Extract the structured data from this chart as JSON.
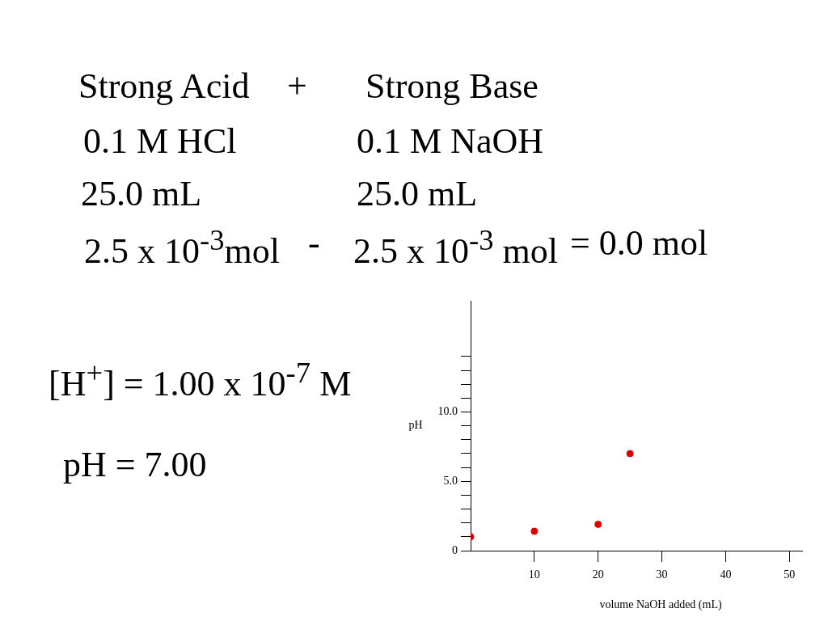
{
  "chart_data": {
    "type": "scatter",
    "xlabel": "volume NaOH added (mL)",
    "ylabel": "pH",
    "annotations": [
      "Strong Acid",
      "+",
      "Strong Base",
      "0.1 M HCl",
      "0.1 M NaOH",
      "25.0 mL",
      "25.0 mL",
      "2.5 x 10$^{-3}$mol",
      "-",
      "2.5 x 10$^{-3}$ mol",
      "= 0.0 mol",
      "[H$^{+}$] = 1.00 x 10$^{-7}$ M",
      "pH = 7.00"
    ],
    "series": [
      {
        "color": "#e00000",
        "x": [
          0,
          10,
          20,
          25
        ],
        "values": [
          1.0,
          1.4,
          1.9,
          7.0
        ]
      }
    ],
    "marker": "circle",
    "xlim": [
      0,
      52
    ],
    "xticks": [
      10,
      20,
      30,
      40,
      50
    ],
    "ylim": [
      0,
      18
    ],
    "yticks": [
      {
        "value": 0,
        "label": "0"
      },
      {
        "value": 1,
        "label": null
      },
      {
        "value": 2,
        "label": null
      },
      {
        "value": 3,
        "label": null
      },
      {
        "value": 4,
        "label": null
      },
      {
        "value": 5,
        "label": "5.0"
      },
      {
        "value": 6,
        "label": null
      },
      {
        "value": 7,
        "label": null
      },
      {
        "value": 8,
        "label": null
      },
      {
        "value": 9,
        "label": null
      },
      {
        "value": 10,
        "label": "10.0"
      },
      {
        "value": 11,
        "label": null
      },
      {
        "value": 12,
        "label": null
      },
      {
        "value": 13,
        "label": null
      },
      {
        "value": 14,
        "label": null
      }
    ]
  }
}
